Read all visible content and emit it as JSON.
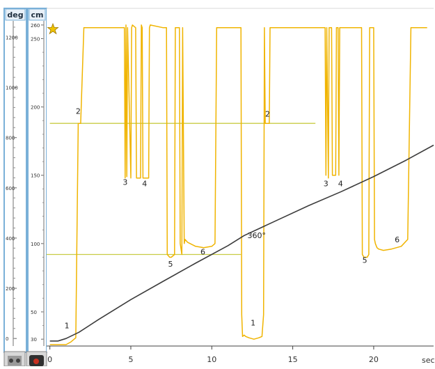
{
  "window": {
    "deg_header": "deg",
    "cm_header": "cm",
    "favorite_icon": "star-icon",
    "sensor_icon": "sensor-icon",
    "motor_icon": "motor-icon"
  },
  "chart_data": {
    "type": "line",
    "xlabel": "sec",
    "x_axis": {
      "min": -0.2,
      "max": 23.7,
      "ticks": [
        0,
        5,
        10,
        15,
        20
      ],
      "tick_labels": [
        "0",
        "5",
        "10",
        "15",
        "20"
      ]
    },
    "y_cm_axis": {
      "header": "cm",
      "min": 25,
      "max": 263,
      "ticks": [
        30,
        50,
        100,
        150,
        200,
        250,
        260
      ],
      "tick_labels": [
        "30",
        "50",
        "100",
        "150",
        "200",
        "250",
        "260"
      ]
    },
    "y_deg_axis": {
      "header": "deg",
      "min": -30,
      "max": 1265,
      "ticks": [
        0,
        200,
        400,
        600,
        800,
        1000,
        1200
      ],
      "tick_labels": [
        "0",
        "200",
        "400",
        "600",
        "800",
        "1000",
        "1200"
      ]
    },
    "colors": {
      "distance": "#f0b400",
      "rotation": "#3c3c3c",
      "threshold": "#c8cc44"
    },
    "thresholds": [
      {
        "x_start": 0.0,
        "x_end": 16.4,
        "y_cm": 188
      },
      {
        "x_start": -0.2,
        "x_end": 11.8,
        "y_cm": 92
      }
    ],
    "series": [
      {
        "kind": "distance",
        "axis": "cm",
        "x": [
          0.0,
          1.0,
          1.3,
          1.5,
          1.6,
          1.75,
          1.9,
          2.1,
          4.6,
          4.65,
          4.7,
          4.75,
          4.8,
          5.0,
          5.05,
          5.1,
          5.3,
          5.35,
          5.6,
          5.65,
          5.7,
          5.75,
          6.1,
          6.15,
          6.2,
          7.0,
          7.2,
          7.25,
          7.4,
          7.5,
          7.7,
          7.75,
          8.0,
          8.05,
          8.15,
          8.2,
          8.3,
          8.35,
          8.5,
          9.0,
          9.5,
          10.0,
          10.2,
          10.3,
          10.5,
          11.8,
          11.85,
          11.9,
          12.0,
          12.1,
          12.3,
          12.6,
          12.9,
          13.1,
          13.2,
          13.25,
          13.3,
          13.55,
          13.6,
          13.85,
          13.95,
          17.0,
          17.05,
          17.1,
          17.2,
          17.25,
          17.35,
          17.4,
          17.45,
          17.65,
          17.7,
          17.8,
          17.85,
          17.9,
          18.1,
          18.15,
          19.2,
          19.25,
          19.3,
          19.4,
          19.6,
          19.7,
          19.75,
          20.0,
          20.05,
          20.1,
          20.2,
          20.3,
          20.6,
          21.1,
          21.7,
          22.1,
          22.3,
          22.35,
          23.2,
          23.3
        ],
        "y": [
          26,
          26,
          28,
          30,
          31,
          188,
          188,
          258,
          258,
          148,
          260,
          149,
          258,
          148,
          258,
          260,
          258,
          148,
          148,
          260,
          258,
          148,
          148,
          258,
          260,
          258,
          258,
          92,
          90,
          90,
          92,
          258,
          258,
          100,
          92,
          258,
          100,
          103,
          101,
          98,
          97,
          98,
          100,
          258,
          258,
          258,
          48,
          32,
          33,
          32,
          31,
          30,
          31,
          32,
          48,
          258,
          188,
          188,
          258,
          258,
          258,
          258,
          150,
          258,
          148,
          258,
          258,
          258,
          150,
          150,
          258,
          258,
          150,
          258,
          258,
          258,
          258,
          258,
          92,
          90,
          90,
          92,
          258,
          258,
          103,
          100,
          97,
          96,
          95,
          96,
          98,
          103,
          258,
          258,
          258,
          258
        ]
      },
      {
        "kind": "rotation",
        "axis": "deg",
        "x": [
          0.0,
          0.5,
          1.0,
          1.8,
          3.0,
          5.0,
          7.0,
          9.0,
          11.0,
          12.0,
          14.0,
          16.0,
          18.0,
          20.0,
          22.0,
          23.7
        ],
        "y": [
          -10,
          -10,
          0,
          25,
          75,
          155,
          228,
          300,
          370,
          410,
          470,
          530,
          585,
          645,
          710,
          770
        ]
      }
    ],
    "annotations": [
      {
        "text": "1",
        "x": 0.9,
        "y_cm": 38
      },
      {
        "text": "2",
        "x": 1.6,
        "y_cm": 195
      },
      {
        "text": "3",
        "x": 4.5,
        "y_cm": 143
      },
      {
        "text": "4",
        "x": 5.7,
        "y_cm": 142
      },
      {
        "text": "5",
        "x": 7.3,
        "y_cm": 83
      },
      {
        "text": "6",
        "x": 9.3,
        "y_cm": 92
      },
      {
        "text": "360°",
        "x": 12.2,
        "y_cm": 104
      },
      {
        "text": "1",
        "x": 12.4,
        "y_cm": 40
      },
      {
        "text": "2",
        "x": 13.3,
        "y_cm": 193
      },
      {
        "text": "3",
        "x": 16.9,
        "y_cm": 142
      },
      {
        "text": "4",
        "x": 17.8,
        "y_cm": 142
      },
      {
        "text": "5",
        "x": 19.3,
        "y_cm": 86
      },
      {
        "text": "6",
        "x": 21.3,
        "y_cm": 101
      }
    ]
  }
}
